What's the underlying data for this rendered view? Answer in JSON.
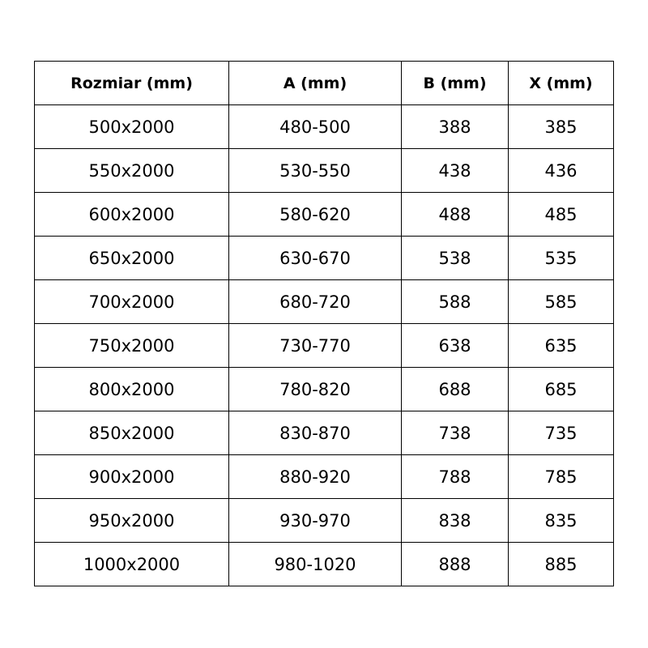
{
  "table": {
    "headers": [
      "Rozmiar (mm)",
      "A (mm)",
      "B (mm)",
      "X (mm)"
    ],
    "rows": [
      [
        "500x2000",
        "480-500",
        "388",
        "385"
      ],
      [
        "550x2000",
        "530-550",
        "438",
        "436"
      ],
      [
        "600x2000",
        "580-620",
        "488",
        "485"
      ],
      [
        "650x2000",
        "630-670",
        "538",
        "535"
      ],
      [
        "700x2000",
        "680-720",
        "588",
        "585"
      ],
      [
        "750x2000",
        "730-770",
        "638",
        "635"
      ],
      [
        "800x2000",
        "780-820",
        "688",
        "685"
      ],
      [
        "850x2000",
        "830-870",
        "738",
        "735"
      ],
      [
        "900x2000",
        "880-920",
        "788",
        "785"
      ],
      [
        "950x2000",
        "930-970",
        "838",
        "835"
      ],
      [
        "1000x2000",
        "980-1020",
        "888",
        "885"
      ]
    ]
  }
}
